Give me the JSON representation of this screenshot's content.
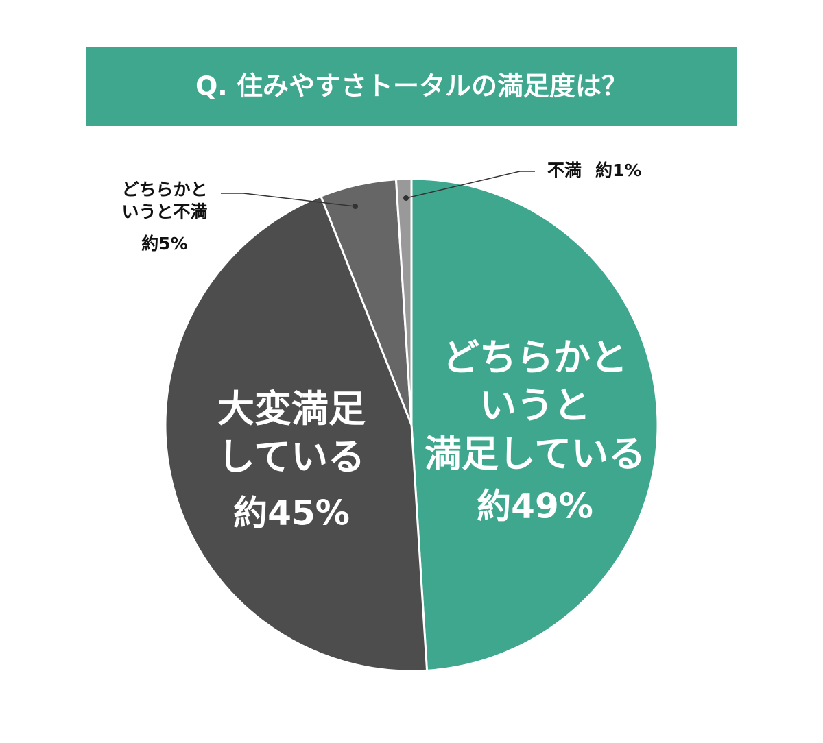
{
  "chart_data": {
    "type": "pie",
    "title": "Q. 住みやすさトータルの満足度は？",
    "title_background": "#3ea78e",
    "categories": [
      "どちらかと\nいうと\n満足している",
      "大変満足\nしている",
      "どちらかと\nいうと不満",
      "不満"
    ],
    "values": [
      49,
      45,
      5,
      1
    ],
    "value_labels": [
      "約49%",
      "約45%",
      "約5%",
      "約1%"
    ],
    "colors": [
      "#3ea78e",
      "#4d4d4d",
      "#666666",
      "#999999"
    ]
  }
}
